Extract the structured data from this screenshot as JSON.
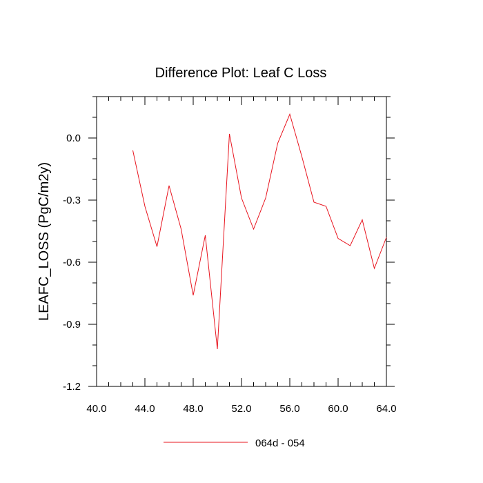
{
  "chart_data": {
    "type": "line",
    "title": "Difference Plot: Leaf C Loss",
    "xlabel": "",
    "ylabel": "LEAFC_LOSS  (PgC/m2y)",
    "xlim": [
      40,
      64
    ],
    "ylim": [
      -1.2,
      0.2
    ],
    "x_ticks": [
      40,
      44,
      48,
      52,
      56,
      60,
      64
    ],
    "x_tick_labels": [
      "40.0",
      "44.0",
      "48.0",
      "52.0",
      "56.0",
      "60.0",
      "64.0"
    ],
    "y_ticks": [
      -1.2,
      -0.9,
      -0.6,
      -0.3,
      0.0
    ],
    "y_tick_labels": [
      "-1.2",
      "-0.9",
      "-0.6",
      "-0.3",
      "0.0"
    ],
    "grid": false,
    "legend_position": "bottom",
    "series": [
      {
        "name": "064d - 054",
        "color": "#e8141e",
        "x": [
          43,
          44,
          45,
          46,
          47,
          48,
          49,
          50,
          51,
          52,
          53,
          54,
          55,
          56,
          57,
          58,
          59,
          60,
          61,
          62,
          63,
          64
        ],
        "y": [
          -0.06,
          -0.33,
          -0.525,
          -0.23,
          -0.44,
          -0.76,
          -0.47,
          -1.02,
          0.02,
          -0.29,
          -0.44,
          -0.29,
          -0.025,
          0.115,
          -0.09,
          -0.31,
          -0.33,
          -0.485,
          -0.52,
          -0.395,
          -0.63,
          -0.48
        ]
      }
    ]
  }
}
